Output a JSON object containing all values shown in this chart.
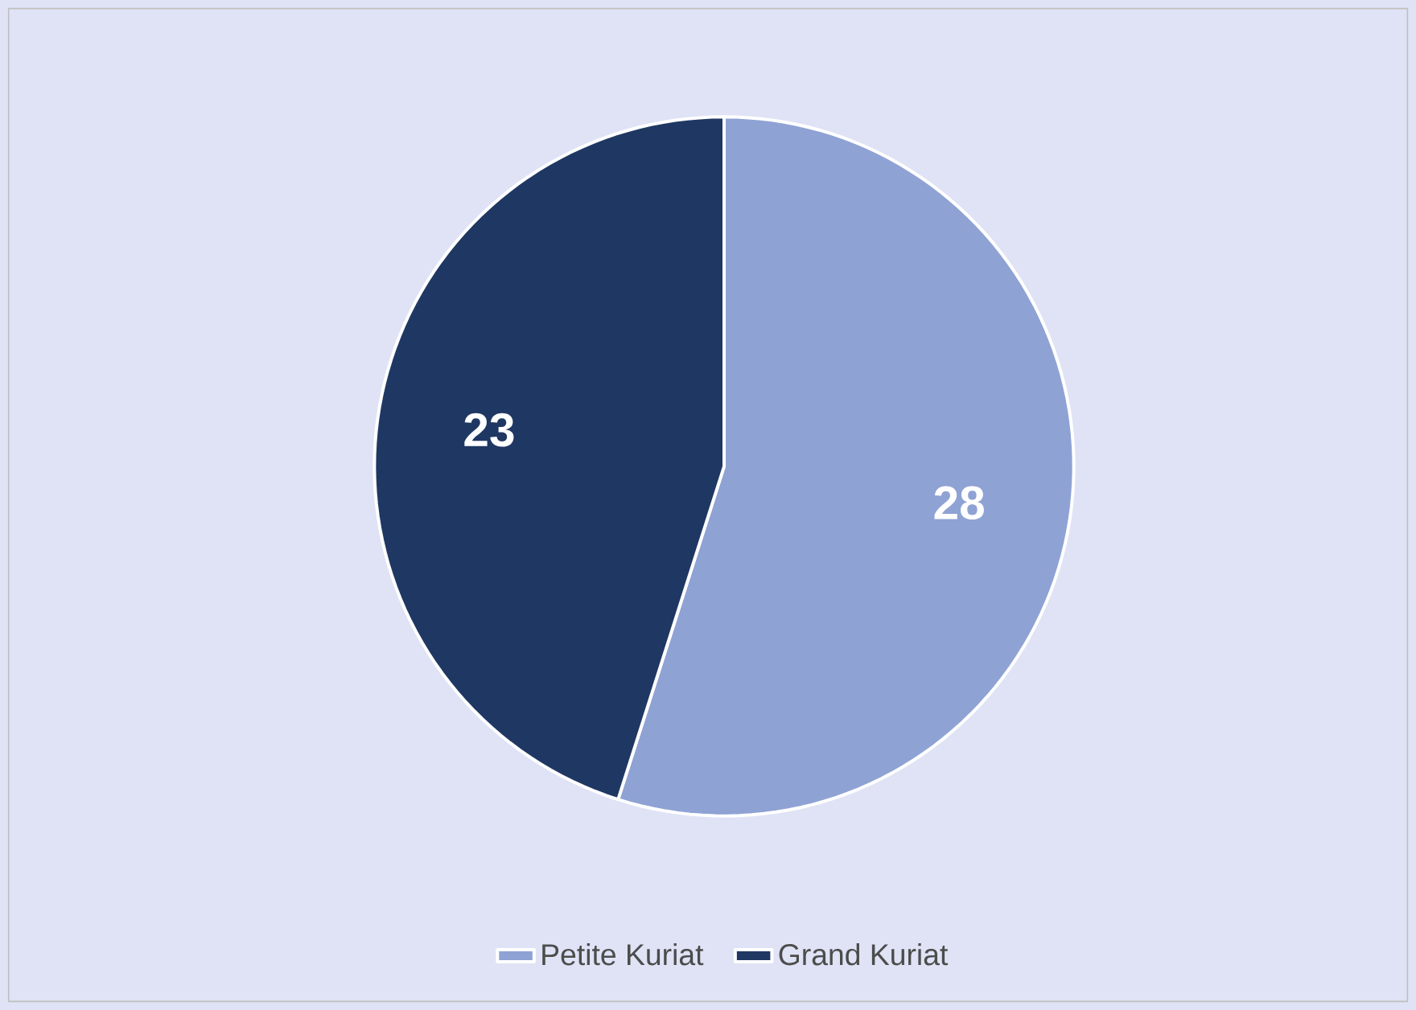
{
  "chart_data": {
    "type": "pie",
    "categories": [
      "Petite Kuriat",
      "Grand Kuriat"
    ],
    "values": [
      28,
      23
    ],
    "colors": [
      "#8fa2d4",
      "#1f3763"
    ],
    "data_labels": true,
    "legend": "bottom"
  }
}
